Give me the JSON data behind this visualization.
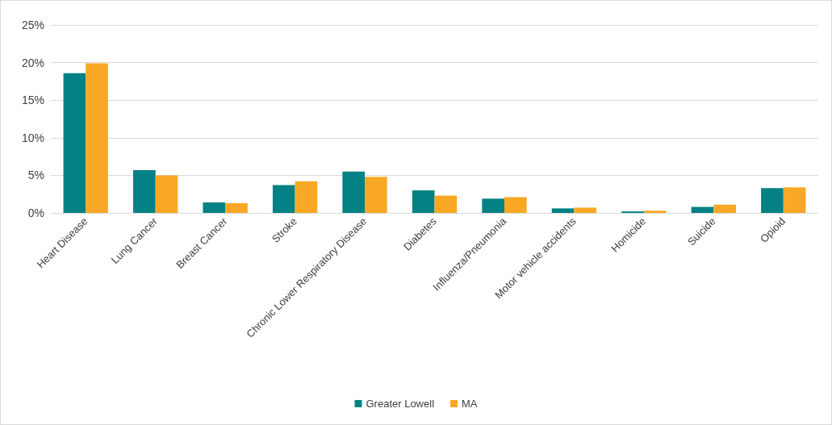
{
  "chart_data": {
    "type": "bar",
    "categories": [
      "Heart Disease",
      "Lung Cancer",
      "Breast Cancer",
      "Stroke",
      "Chronic Lower Respiratory Disease",
      "Diabetes",
      "Influenza/Pneumonia",
      "Motor vehicle accidents",
      "Homicide",
      "Suicide",
      "Opioid"
    ],
    "series": [
      {
        "name": "Greater Lowell",
        "color": "#038184",
        "values": [
          18.6,
          5.7,
          1.4,
          3.7,
          5.5,
          3.0,
          1.9,
          0.6,
          0.2,
          0.8,
          3.3
        ]
      },
      {
        "name": "MA",
        "color": "#f9a825",
        "values": [
          19.9,
          5.0,
          1.3,
          4.2,
          4.8,
          2.3,
          2.1,
          0.7,
          0.3,
          1.1,
          3.4
        ]
      }
    ],
    "ylim": [
      0,
      25
    ],
    "yticks": [
      {
        "value": 0,
        "label": "0%"
      },
      {
        "value": 5,
        "label": "5%"
      },
      {
        "value": 10,
        "label": "10%"
      },
      {
        "value": 15,
        "label": "15%"
      },
      {
        "value": 20,
        "label": "20%"
      },
      {
        "value": 25,
        "label": "25%"
      }
    ],
    "grid": "y",
    "legend": "bottom"
  }
}
